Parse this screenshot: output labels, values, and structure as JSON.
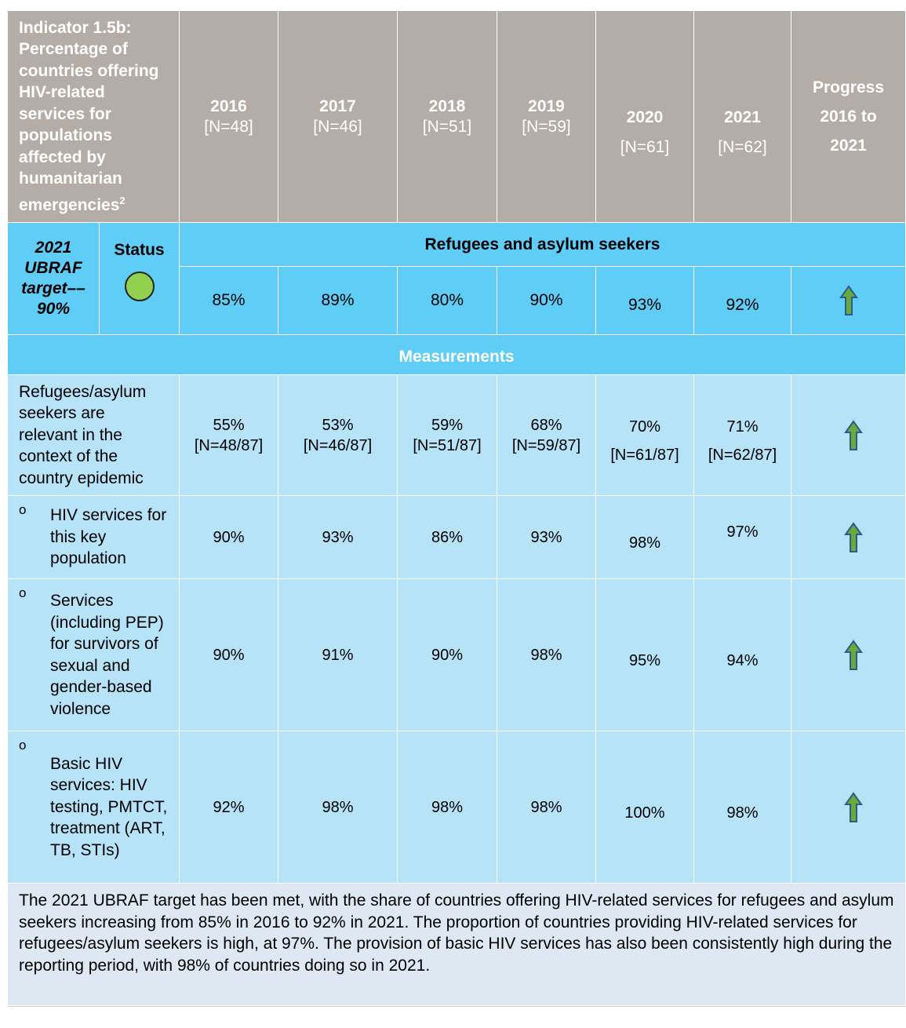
{
  "header": {
    "indicator": "Indicator 1.5b: Percentage of countries offering HIV-related services for populations affected by humanitarian emergencies",
    "footnote": "2",
    "years": [
      {
        "year": "2016",
        "n": "[N=48]"
      },
      {
        "year": "2017",
        "n": "[N=46]"
      },
      {
        "year": "2018",
        "n": "[N=51]"
      },
      {
        "year": "2019",
        "n": "[N=59]"
      },
      {
        "year": "2020",
        "n": "[N=61]"
      },
      {
        "year": "2021",
        "n": "[N=62]"
      }
    ],
    "progress": "Progress 2016 to 2021"
  },
  "target": {
    "label": "2021 UBRAF target––90%",
    "status": "Status"
  },
  "section": "Refugees and asylum seekers",
  "section_values": [
    "85%",
    "89%",
    "80%",
    "90%",
    "93%",
    "92%"
  ],
  "measurements_title": "Measurements",
  "rows": [
    {
      "label": "Refugees/asylum seekers are relevant in the context of the country epidemic",
      "values": [
        {
          "pct": "55%",
          "n": "[N=48/87]"
        },
        {
          "pct": "53%",
          "n": "[N=46/87]"
        },
        {
          "pct": "59%",
          "n": "[N=51/87]"
        },
        {
          "pct": "68%",
          "n": "[N=59/87]"
        },
        {
          "pct": "70%",
          "n": "[N=61/87]"
        },
        {
          "pct": "71%",
          "n": "[N=62/87]"
        }
      ]
    },
    {
      "bullet": "o",
      "label": "HIV services for this key population",
      "values": [
        "90%",
        "93%",
        "86%",
        "93%",
        "98%",
        "97%"
      ]
    },
    {
      "bullet": "o",
      "label": "Services (including PEP) for survivors of sexual and gender-based violence",
      "values": [
        "90%",
        "91%",
        "90%",
        "98%",
        "95%",
        "94%"
      ]
    },
    {
      "bullet": "o",
      "label": "Basic HIV services: HIV testing, PMTCT, treatment (ART, TB, STIs)",
      "values": [
        "92%",
        "98%",
        "98%",
        "98%",
        "100%",
        "98%"
      ]
    }
  ],
  "note": "The 2021 UBRAF target has been met, with the share of countries offering HIV-related services for refugees and asylum seekers increasing from 85% in 2016 to 92% in 2021. The proportion of countries providing HIV-related services for refugees/asylum seekers is high, at 97%. The provision of basic HIV services has also been consistently high during the reporting period, with 98% of countries doing so in 2021."
}
